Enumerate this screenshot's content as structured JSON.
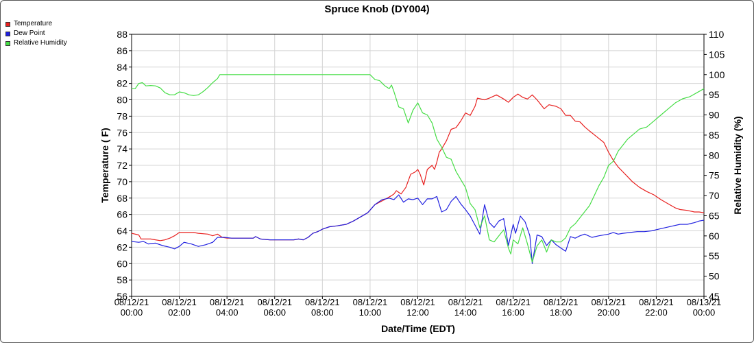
{
  "chart_data": {
    "type": "line",
    "title": "Spruce Knob (DY004)",
    "xlabel": "Date/Time (EDT)",
    "ylabel_left": "Temperature ( F)",
    "ylabel_right": "Relative Humidity (%)",
    "xlim": [
      0,
      24
    ],
    "ylim_left": [
      56,
      88
    ],
    "ylim_right": [
      45,
      110
    ],
    "yticks_left": [
      56,
      58,
      60,
      62,
      64,
      66,
      68,
      70,
      72,
      74,
      76,
      78,
      80,
      82,
      84,
      86,
      88
    ],
    "yticks_right": [
      45,
      50,
      55,
      60,
      65,
      70,
      75,
      80,
      85,
      90,
      95,
      100,
      105,
      110
    ],
    "xticks": [
      {
        "x": 0,
        "date": "08/12/21",
        "time": "00:00"
      },
      {
        "x": 2,
        "date": "08/12/21",
        "time": "02:00"
      },
      {
        "x": 4,
        "date": "08/12/21",
        "time": "04:00"
      },
      {
        "x": 6,
        "date": "08/12/21",
        "time": "06:00"
      },
      {
        "x": 8,
        "date": "08/12/21",
        "time": "08:00"
      },
      {
        "x": 10,
        "date": "08/12/21",
        "time": "10:00"
      },
      {
        "x": 12,
        "date": "08/12/21",
        "time": "12:00"
      },
      {
        "x": 14,
        "date": "08/12/21",
        "time": "14:00"
      },
      {
        "x": 16,
        "date": "08/12/21",
        "time": "16:00"
      },
      {
        "x": 18,
        "date": "08/12/21",
        "time": "18:00"
      },
      {
        "x": 20,
        "date": "08/12/21",
        "time": "20:00"
      },
      {
        "x": 22,
        "date": "08/12/21",
        "time": "22:00"
      },
      {
        "x": 24,
        "date": "08/13/21",
        "time": "00:00"
      }
    ],
    "grid": true,
    "legend_position": "top-left",
    "series": [
      {
        "name": "Temperature",
        "color": "#e8201f",
        "axis": "left",
        "points": [
          [
            0,
            63.7
          ],
          [
            0.3,
            63.5
          ],
          [
            0.4,
            63.0
          ],
          [
            0.8,
            63.0
          ],
          [
            1.0,
            62.9
          ],
          [
            1.2,
            62.8
          ],
          [
            1.4,
            62.9
          ],
          [
            1.6,
            63.1
          ],
          [
            1.8,
            63.4
          ],
          [
            2.0,
            63.8
          ],
          [
            2.4,
            63.8
          ],
          [
            2.6,
            63.8
          ],
          [
            2.8,
            63.7
          ],
          [
            3.2,
            63.6
          ],
          [
            3.4,
            63.4
          ],
          [
            3.6,
            63.6
          ],
          [
            3.8,
            63.2
          ],
          [
            4.0,
            63.1
          ],
          [
            4.4,
            63.1
          ],
          [
            4.8,
            63.1
          ],
          [
            5.1,
            63.1
          ],
          [
            5.2,
            63.3
          ],
          [
            5.4,
            63.0
          ],
          [
            5.8,
            62.9
          ],
          [
            6.4,
            62.9
          ],
          [
            6.8,
            62.9
          ],
          [
            7.0,
            63.0
          ],
          [
            7.2,
            62.9
          ],
          [
            7.4,
            63.2
          ],
          [
            7.6,
            63.7
          ],
          [
            7.8,
            63.9
          ],
          [
            8.0,
            64.2
          ],
          [
            8.3,
            64.5
          ],
          [
            8.6,
            64.6
          ],
          [
            9.0,
            64.8
          ],
          [
            9.3,
            65.2
          ],
          [
            9.6,
            65.7
          ],
          [
            9.9,
            66.2
          ],
          [
            10.2,
            67.2
          ],
          [
            10.6,
            67.8
          ],
          [
            10.9,
            68.3
          ],
          [
            11.0,
            68.5
          ],
          [
            11.1,
            68.9
          ],
          [
            11.3,
            68.5
          ],
          [
            11.5,
            69.3
          ],
          [
            11.7,
            70.9
          ],
          [
            11.9,
            71.2
          ],
          [
            12.0,
            71.5
          ],
          [
            12.1,
            70.9
          ],
          [
            12.25,
            69.6
          ],
          [
            12.4,
            71.5
          ],
          [
            12.6,
            72.0
          ],
          [
            12.7,
            71.5
          ],
          [
            12.8,
            72.4
          ],
          [
            12.9,
            73.6
          ],
          [
            13.0,
            74.0
          ],
          [
            13.2,
            75.0
          ],
          [
            13.4,
            76.4
          ],
          [
            13.6,
            76.6
          ],
          [
            13.8,
            77.4
          ],
          [
            14.0,
            78.4
          ],
          [
            14.2,
            78.1
          ],
          [
            14.4,
            79.2
          ],
          [
            14.5,
            80.2
          ],
          [
            14.8,
            80.0
          ],
          [
            15.0,
            80.2
          ],
          [
            15.3,
            80.6
          ],
          [
            15.6,
            80.1
          ],
          [
            15.8,
            79.7
          ],
          [
            16.0,
            80.3
          ],
          [
            16.2,
            80.7
          ],
          [
            16.4,
            80.3
          ],
          [
            16.6,
            80.1
          ],
          [
            16.8,
            80.6
          ],
          [
            17.0,
            80.0
          ],
          [
            17.3,
            78.9
          ],
          [
            17.5,
            79.4
          ],
          [
            17.8,
            79.2
          ],
          [
            18.0,
            78.9
          ],
          [
            18.2,
            78.1
          ],
          [
            18.4,
            78.1
          ],
          [
            18.6,
            77.4
          ],
          [
            18.8,
            77.3
          ],
          [
            19.0,
            76.7
          ],
          [
            19.2,
            76.2
          ],
          [
            19.5,
            75.5
          ],
          [
            19.8,
            74.8
          ],
          [
            20.0,
            73.6
          ],
          [
            20.2,
            72.6
          ],
          [
            20.4,
            71.8
          ],
          [
            20.6,
            71.2
          ],
          [
            20.8,
            70.6
          ],
          [
            21.0,
            70.0
          ],
          [
            21.3,
            69.3
          ],
          [
            21.6,
            68.8
          ],
          [
            21.9,
            68.4
          ],
          [
            22.2,
            67.8
          ],
          [
            22.5,
            67.3
          ],
          [
            22.8,
            66.8
          ],
          [
            23.0,
            66.6
          ],
          [
            23.3,
            66.5
          ],
          [
            23.6,
            66.3
          ],
          [
            23.8,
            66.3
          ],
          [
            24.0,
            66.2
          ]
        ]
      },
      {
        "name": "Dew Point",
        "color": "#2020e0",
        "axis": "left",
        "points": [
          [
            0,
            62.7
          ],
          [
            0.3,
            62.6
          ],
          [
            0.5,
            62.7
          ],
          [
            0.7,
            62.4
          ],
          [
            1.0,
            62.5
          ],
          [
            1.3,
            62.2
          ],
          [
            1.6,
            62.0
          ],
          [
            1.8,
            61.8
          ],
          [
            2.0,
            62.1
          ],
          [
            2.2,
            62.6
          ],
          [
            2.5,
            62.4
          ],
          [
            2.8,
            62.1
          ],
          [
            3.1,
            62.3
          ],
          [
            3.4,
            62.6
          ],
          [
            3.6,
            63.2
          ],
          [
            3.9,
            63.2
          ],
          [
            4.2,
            63.1
          ],
          [
            4.5,
            63.1
          ],
          [
            4.8,
            63.1
          ],
          [
            5.1,
            63.1
          ],
          [
            5.2,
            63.3
          ],
          [
            5.4,
            63.0
          ],
          [
            5.8,
            62.9
          ],
          [
            6.4,
            62.9
          ],
          [
            6.8,
            62.9
          ],
          [
            7.0,
            63.0
          ],
          [
            7.2,
            62.9
          ],
          [
            7.4,
            63.2
          ],
          [
            7.6,
            63.7
          ],
          [
            7.8,
            63.9
          ],
          [
            8.0,
            64.2
          ],
          [
            8.3,
            64.5
          ],
          [
            8.6,
            64.6
          ],
          [
            9.0,
            64.8
          ],
          [
            9.3,
            65.2
          ],
          [
            9.6,
            65.7
          ],
          [
            9.9,
            66.2
          ],
          [
            10.2,
            67.2
          ],
          [
            10.5,
            67.8
          ],
          [
            10.8,
            68.0
          ],
          [
            11.0,
            67.8
          ],
          [
            11.2,
            68.4
          ],
          [
            11.4,
            67.5
          ],
          [
            11.6,
            67.9
          ],
          [
            11.8,
            67.8
          ],
          [
            12.0,
            68.0
          ],
          [
            12.2,
            67.2
          ],
          [
            12.4,
            67.9
          ],
          [
            12.6,
            67.9
          ],
          [
            12.8,
            68.2
          ],
          [
            13.0,
            66.3
          ],
          [
            13.2,
            66.6
          ],
          [
            13.4,
            67.6
          ],
          [
            13.6,
            68.2
          ],
          [
            13.8,
            67.3
          ],
          [
            14.0,
            66.6
          ],
          [
            14.2,
            65.8
          ],
          [
            14.4,
            64.7
          ],
          [
            14.6,
            63.6
          ],
          [
            14.8,
            67.2
          ],
          [
            15.0,
            65.0
          ],
          [
            15.2,
            64.4
          ],
          [
            15.4,
            65.2
          ],
          [
            15.6,
            65.5
          ],
          [
            15.8,
            62.2
          ],
          [
            16.0,
            64.8
          ],
          [
            16.1,
            63.7
          ],
          [
            16.3,
            65.8
          ],
          [
            16.5,
            65.1
          ],
          [
            16.7,
            63.4
          ],
          [
            16.8,
            60.0
          ],
          [
            17.0,
            63.5
          ],
          [
            17.2,
            63.3
          ],
          [
            17.4,
            62.2
          ],
          [
            17.6,
            62.9
          ],
          [
            17.8,
            62.3
          ],
          [
            18.0,
            61.9
          ],
          [
            18.2,
            61.5
          ],
          [
            18.4,
            63.3
          ],
          [
            18.6,
            63.1
          ],
          [
            18.8,
            63.4
          ],
          [
            19.0,
            63.6
          ],
          [
            19.3,
            63.2
          ],
          [
            19.6,
            63.4
          ],
          [
            20.0,
            63.6
          ],
          [
            20.2,
            63.8
          ],
          [
            20.4,
            63.6
          ],
          [
            20.6,
            63.7
          ],
          [
            20.9,
            63.8
          ],
          [
            21.2,
            63.9
          ],
          [
            21.5,
            63.9
          ],
          [
            21.8,
            64.0
          ],
          [
            22.1,
            64.2
          ],
          [
            22.4,
            64.4
          ],
          [
            22.7,
            64.6
          ],
          [
            23.0,
            64.8
          ],
          [
            23.3,
            64.8
          ],
          [
            23.6,
            65.0
          ],
          [
            23.8,
            65.2
          ],
          [
            24.0,
            65.3
          ]
        ]
      },
      {
        "name": "Relative Humidity",
        "color": "#44dd44",
        "axis": "right",
        "points": [
          [
            0,
            96.5
          ],
          [
            0.15,
            96.5
          ],
          [
            0.3,
            97.8
          ],
          [
            0.45,
            98.0
          ],
          [
            0.6,
            97.2
          ],
          [
            0.8,
            97.3
          ],
          [
            1.0,
            97.2
          ],
          [
            1.2,
            96.7
          ],
          [
            1.4,
            95.5
          ],
          [
            1.6,
            95.0
          ],
          [
            1.8,
            95.0
          ],
          [
            2.0,
            95.7
          ],
          [
            2.2,
            95.5
          ],
          [
            2.4,
            95.0
          ],
          [
            2.6,
            94.8
          ],
          [
            2.8,
            95.0
          ],
          [
            3.0,
            95.8
          ],
          [
            3.2,
            96.8
          ],
          [
            3.4,
            98.0
          ],
          [
            3.6,
            99.0
          ],
          [
            3.7,
            100.0
          ],
          [
            10.0,
            100.0
          ],
          [
            10.2,
            98.8
          ],
          [
            10.4,
            98.5
          ],
          [
            10.6,
            97.3
          ],
          [
            10.8,
            96.5
          ],
          [
            10.9,
            97.4
          ],
          [
            11.0,
            95.8
          ],
          [
            11.2,
            92.0
          ],
          [
            11.4,
            91.5
          ],
          [
            11.6,
            88.0
          ],
          [
            11.8,
            91.2
          ],
          [
            12.0,
            93.0
          ],
          [
            12.2,
            90.5
          ],
          [
            12.4,
            90.0
          ],
          [
            12.6,
            88.0
          ],
          [
            12.8,
            84.0
          ],
          [
            13.0,
            82.0
          ],
          [
            13.2,
            79.5
          ],
          [
            13.4,
            79.0
          ],
          [
            13.6,
            76.0
          ],
          [
            13.8,
            74.0
          ],
          [
            14.0,
            72.0
          ],
          [
            14.2,
            68.0
          ],
          [
            14.4,
            66.5
          ],
          [
            14.6,
            62.0
          ],
          [
            14.8,
            65.0
          ],
          [
            15.0,
            59.0
          ],
          [
            15.2,
            58.5
          ],
          [
            15.4,
            60.0
          ],
          [
            15.6,
            61.5
          ],
          [
            15.8,
            57.0
          ],
          [
            15.9,
            55.5
          ],
          [
            16.0,
            59.0
          ],
          [
            16.2,
            58.0
          ],
          [
            16.4,
            62.0
          ],
          [
            16.6,
            58.0
          ],
          [
            16.8,
            53.5
          ],
          [
            17.0,
            57.5
          ],
          [
            17.2,
            59.0
          ],
          [
            17.4,
            56.0
          ],
          [
            17.6,
            59.0
          ],
          [
            17.8,
            58.5
          ],
          [
            18.0,
            58.5
          ],
          [
            18.2,
            59.5
          ],
          [
            18.4,
            62.0
          ],
          [
            18.6,
            63.0
          ],
          [
            18.8,
            64.5
          ],
          [
            19.0,
            66.0
          ],
          [
            19.2,
            67.5
          ],
          [
            19.4,
            70.0
          ],
          [
            19.6,
            72.5
          ],
          [
            19.8,
            74.5
          ],
          [
            20.0,
            77.5
          ],
          [
            20.2,
            78.5
          ],
          [
            20.4,
            81.0
          ],
          [
            20.6,
            82.5
          ],
          [
            20.8,
            84.0
          ],
          [
            21.0,
            85.0
          ],
          [
            21.3,
            86.5
          ],
          [
            21.6,
            87.0
          ],
          [
            21.9,
            88.5
          ],
          [
            22.2,
            90.0
          ],
          [
            22.5,
            91.5
          ],
          [
            22.8,
            93.0
          ],
          [
            23.1,
            94.0
          ],
          [
            23.4,
            94.5
          ],
          [
            23.7,
            95.5
          ],
          [
            24.0,
            96.5
          ]
        ]
      }
    ]
  }
}
